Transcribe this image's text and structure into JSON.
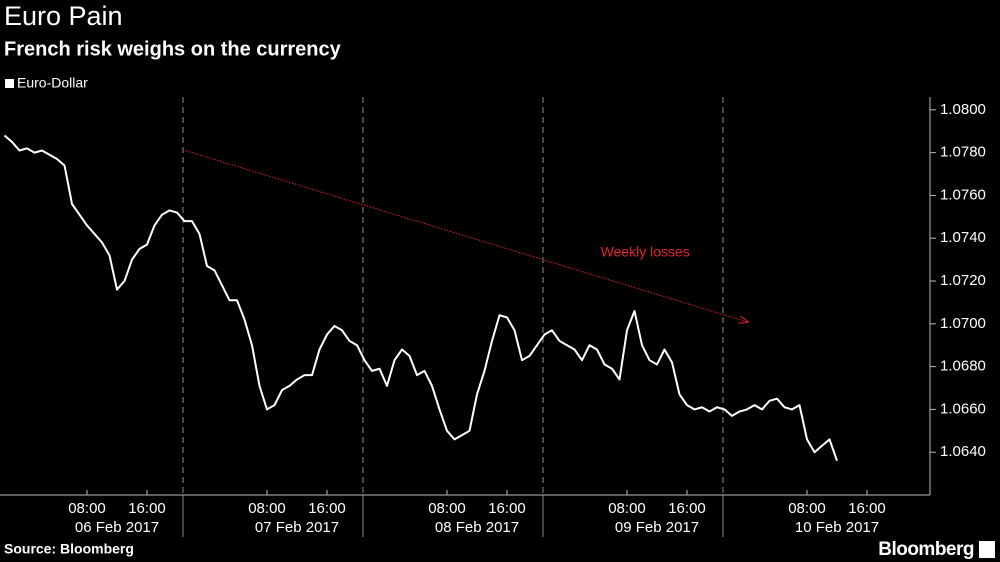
{
  "chart_data": {
    "type": "line",
    "title": "Euro Pain",
    "subtitle": "French risk weighs on the currency",
    "source": "Source: Bloomberg",
    "brand": "Bloomberg",
    "x": [
      "2017-02-05T21:00",
      "2017-02-05T22:00",
      "2017-02-05T23:00",
      "2017-02-06T00:00",
      "2017-02-06T01:00",
      "2017-02-06T02:00",
      "2017-02-06T03:00",
      "2017-02-06T04:00",
      "2017-02-06T05:00",
      "2017-02-06T06:00",
      "2017-02-06T07:00",
      "2017-02-06T08:00",
      "2017-02-06T09:00",
      "2017-02-06T10:00",
      "2017-02-06T11:00",
      "2017-02-06T12:00",
      "2017-02-06T13:00",
      "2017-02-06T14:00",
      "2017-02-06T15:00",
      "2017-02-06T16:00",
      "2017-02-06T17:00",
      "2017-02-06T18:00",
      "2017-02-06T19:00",
      "2017-02-06T20:00",
      "2017-02-06T21:00",
      "2017-02-06T22:00",
      "2017-02-06T23:00",
      "2017-02-07T00:00",
      "2017-02-07T01:00",
      "2017-02-07T02:00",
      "2017-02-07T03:00",
      "2017-02-07T04:00",
      "2017-02-07T05:00",
      "2017-02-07T06:00",
      "2017-02-07T07:00",
      "2017-02-07T08:00",
      "2017-02-07T09:00",
      "2017-02-07T10:00",
      "2017-02-07T11:00",
      "2017-02-07T12:00",
      "2017-02-07T13:00",
      "2017-02-07T14:00",
      "2017-02-07T15:00",
      "2017-02-07T16:00",
      "2017-02-07T17:00",
      "2017-02-07T18:00",
      "2017-02-07T19:00",
      "2017-02-07T20:00",
      "2017-02-07T21:00",
      "2017-02-07T22:00",
      "2017-02-07T23:00",
      "2017-02-08T00:00",
      "2017-02-08T01:00",
      "2017-02-08T02:00",
      "2017-02-08T03:00",
      "2017-02-08T04:00",
      "2017-02-08T05:00",
      "2017-02-08T06:00",
      "2017-02-08T07:00",
      "2017-02-08T08:00",
      "2017-02-08T09:00",
      "2017-02-08T10:00",
      "2017-02-08T11:00",
      "2017-02-08T12:00",
      "2017-02-08T13:00",
      "2017-02-08T14:00",
      "2017-02-08T15:00",
      "2017-02-08T16:00",
      "2017-02-08T17:00",
      "2017-02-08T18:00",
      "2017-02-08T19:00",
      "2017-02-08T20:00",
      "2017-02-08T21:00",
      "2017-02-08T22:00",
      "2017-02-08T23:00",
      "2017-02-09T00:00",
      "2017-02-09T01:00",
      "2017-02-09T02:00",
      "2017-02-09T03:00",
      "2017-02-09T04:00",
      "2017-02-09T05:00",
      "2017-02-09T06:00",
      "2017-02-09T07:00",
      "2017-02-09T08:00",
      "2017-02-09T09:00",
      "2017-02-09T10:00",
      "2017-02-09T11:00",
      "2017-02-09T12:00",
      "2017-02-09T13:00",
      "2017-02-09T14:00",
      "2017-02-09T15:00",
      "2017-02-09T16:00",
      "2017-02-09T17:00",
      "2017-02-09T18:00",
      "2017-02-09T19:00",
      "2017-02-09T20:00",
      "2017-02-09T21:00",
      "2017-02-09T22:00",
      "2017-02-09T23:00",
      "2017-02-10T00:00",
      "2017-02-10T01:00",
      "2017-02-10T02:00",
      "2017-02-10T03:00",
      "2017-02-10T04:00",
      "2017-02-10T05:00",
      "2017-02-10T06:00",
      "2017-02-10T07:00",
      "2017-02-10T08:00",
      "2017-02-10T09:00",
      "2017-02-10T10:00",
      "2017-02-10T11:00",
      "2017-02-10T12:00"
    ],
    "series": [
      {
        "name": "Euro-Dollar",
        "color": "#ffffff",
        "values": [
          1.0788,
          1.0785,
          1.0781,
          1.0782,
          1.078,
          1.0781,
          1.0779,
          1.0777,
          1.0774,
          1.0756,
          1.0751,
          1.0746,
          1.0742,
          1.0738,
          1.0732,
          1.0716,
          1.072,
          1.073,
          1.0735,
          1.0737,
          1.0746,
          1.0751,
          1.0753,
          1.0752,
          1.0748,
          1.0748,
          1.0742,
          1.0727,
          1.0725,
          1.0718,
          1.0711,
          1.0711,
          1.0702,
          1.069,
          1.0671,
          1.066,
          1.0662,
          1.0669,
          1.0671,
          1.0674,
          1.0676,
          1.0676,
          1.0688,
          1.0695,
          1.0699,
          1.0697,
          1.0692,
          1.069,
          1.0683,
          1.0678,
          1.0679,
          1.0671,
          1.0683,
          1.0688,
          1.0685,
          1.0676,
          1.0678,
          1.0671,
          1.066,
          1.065,
          1.0646,
          1.0648,
          1.065,
          1.0667,
          1.0678,
          1.0692,
          1.0704,
          1.0703,
          1.0697,
          1.0683,
          1.0685,
          1.069,
          1.0695,
          1.0697,
          1.0692,
          1.069,
          1.0688,
          1.0683,
          1.069,
          1.0688,
          1.0681,
          1.0679,
          1.0674,
          1.0697,
          1.0706,
          1.069,
          1.0683,
          1.0681,
          1.0688,
          1.0682,
          1.0667,
          1.0662,
          1.066,
          1.0661,
          1.0659,
          1.0661,
          1.066,
          1.0657,
          1.0659,
          1.066,
          1.0662,
          1.066,
          1.0664,
          1.0665,
          1.0661,
          1.066,
          1.0662,
          1.0646,
          1.064,
          1.0643,
          1.0646,
          1.0636
        ]
      }
    ],
    "xlim": [
      "2017-02-05T20:24",
      "2017-02-11T00:24"
    ],
    "xticks": [
      {
        "value": "2017-02-06T08:00",
        "label": "08:00"
      },
      {
        "value": "2017-02-06T16:00",
        "label": "16:00"
      },
      {
        "value": "2017-02-07T08:00",
        "label": "08:00"
      },
      {
        "value": "2017-02-07T16:00",
        "label": "16:00"
      },
      {
        "value": "2017-02-08T08:00",
        "label": "08:00"
      },
      {
        "value": "2017-02-08T16:00",
        "label": "16:00"
      },
      {
        "value": "2017-02-09T08:00",
        "label": "08:00"
      },
      {
        "value": "2017-02-09T16:00",
        "label": "16:00"
      },
      {
        "value": "2017-02-10T08:00",
        "label": "08:00"
      },
      {
        "value": "2017-02-10T16:00",
        "label": "16:00"
      }
    ],
    "date_labels": [
      {
        "value": "2017-02-06T12:00",
        "label": "06 Feb 2017"
      },
      {
        "value": "2017-02-07T12:00",
        "label": "07 Feb 2017"
      },
      {
        "value": "2017-02-08T12:00",
        "label": "08 Feb 2017"
      },
      {
        "value": "2017-02-09T12:00",
        "label": "09 Feb 2017"
      },
      {
        "value": "2017-02-10T12:00",
        "label": "10 Feb 2017"
      }
    ],
    "day_dividers": [
      "2017-02-06T20:48",
      "2017-02-07T20:48",
      "2017-02-08T20:48",
      "2017-02-09T20:48"
    ],
    "ylim": [
      1.062,
      1.0806
    ],
    "yticks": [
      {
        "value": 1.064,
        "label": "1.0640"
      },
      {
        "value": 1.066,
        "label": "1.0660"
      },
      {
        "value": 1.068,
        "label": "1.0680"
      },
      {
        "value": 1.07,
        "label": "1.0700"
      },
      {
        "value": 1.072,
        "label": "1.0720"
      },
      {
        "value": 1.074,
        "label": "1.0740"
      },
      {
        "value": 1.076,
        "label": "1.0760"
      },
      {
        "value": 1.078,
        "label": "1.0780"
      },
      {
        "value": 1.08,
        "label": "1.0800"
      }
    ],
    "annotation": {
      "text": "Weekly losses",
      "color": "#e8202a",
      "from": [
        "2017-02-06T20:48",
        1.07813
      ],
      "to": [
        "2017-02-10T00:06",
        1.07008
      ]
    },
    "legend": "top-left"
  }
}
